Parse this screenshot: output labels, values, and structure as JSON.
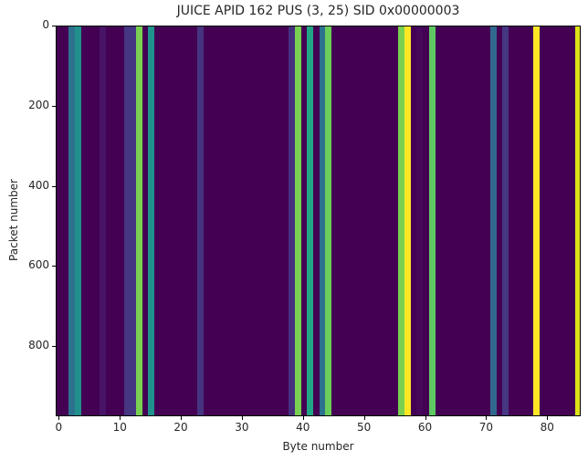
{
  "chart_data": {
    "type": "heatmap",
    "title": "JUICE APID 162 PUS (3, 25) SID 0x00000003",
    "xlabel": "Byte number",
    "ylabel": "Packet number",
    "xlim": [
      -0.5,
      85.5
    ],
    "ylim": [
      975,
      0
    ],
    "xticks": [
      0,
      10,
      20,
      30,
      40,
      50,
      60,
      70,
      80
    ],
    "yticks": [
      0,
      200,
      400,
      600,
      800
    ],
    "colormap": "viridis",
    "background_color": "#440154",
    "note": "Values constant across all packets; each byte column has a single color",
    "columns": [
      {
        "byte": 2,
        "color": "#2c728e"
      },
      {
        "byte": 3,
        "color": "#21908d"
      },
      {
        "byte": 7,
        "color": "#481467"
      },
      {
        "byte": 11,
        "color": "#453781"
      },
      {
        "byte": 12,
        "color": "#453781"
      },
      {
        "byte": 13,
        "color": "#7ad151"
      },
      {
        "byte": 15,
        "color": "#20928c"
      },
      {
        "byte": 23,
        "color": "#463480"
      },
      {
        "byte": 38,
        "color": "#46307e"
      },
      {
        "byte": 39,
        "color": "#7ad151"
      },
      {
        "byte": 41,
        "color": "#22a785"
      },
      {
        "byte": 43,
        "color": "#2c728e"
      },
      {
        "byte": 44,
        "color": "#6ccd5a"
      },
      {
        "byte": 56,
        "color": "#7ad151"
      },
      {
        "byte": 57,
        "color": "#fde725"
      },
      {
        "byte": 59,
        "color": "#45085b"
      },
      {
        "byte": 61,
        "color": "#5ec962"
      },
      {
        "byte": 71,
        "color": "#31688e"
      },
      {
        "byte": 73,
        "color": "#453781"
      },
      {
        "byte": 78,
        "color": "#fde725"
      },
      {
        "byte": 85,
        "color": "#dde318"
      }
    ]
  }
}
